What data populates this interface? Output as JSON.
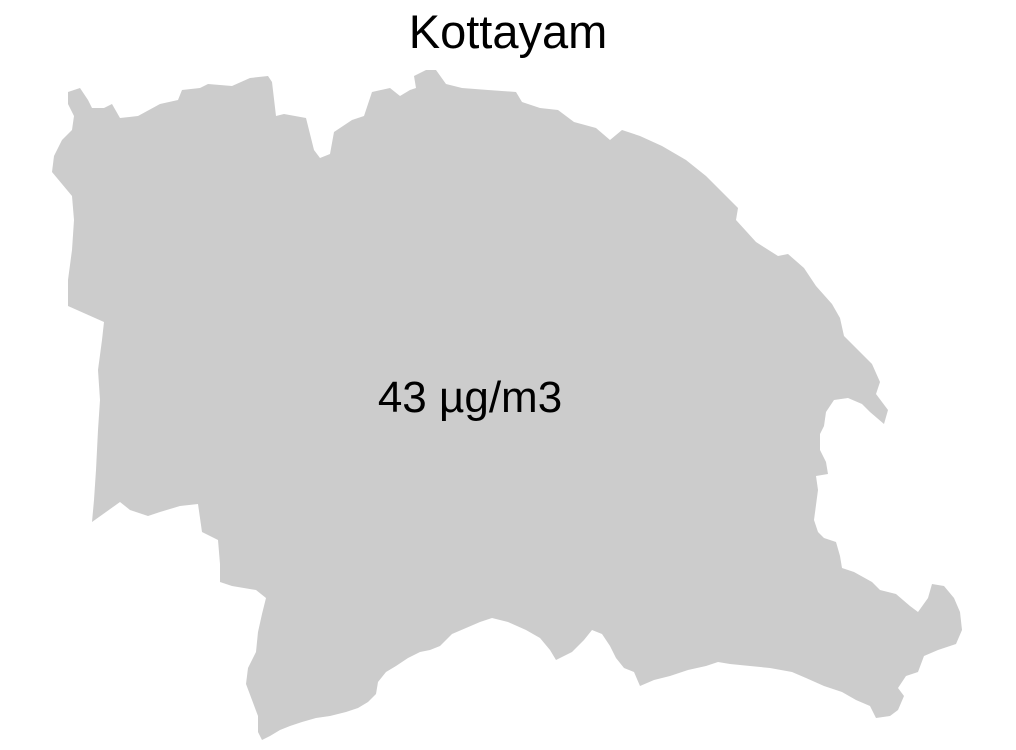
{
  "title": "Kottayam",
  "district": {
    "name": "Kottayam",
    "value_label": "43 µg/m3",
    "value": 43,
    "unit": "µg/m3",
    "fill_color": "#cccccc"
  }
}
